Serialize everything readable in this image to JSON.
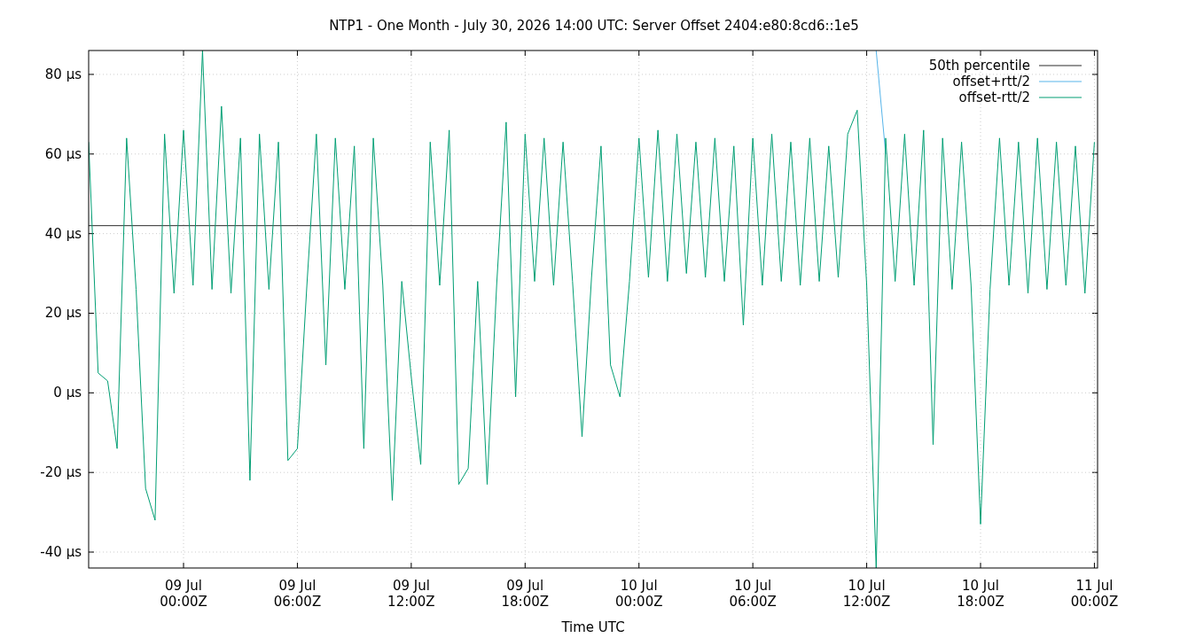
{
  "chart_data": {
    "type": "line",
    "title": "NTP1 - One Month - July 30, 2026 14:00 UTC: Server Offset 2404:e80:8cd6::1e5",
    "xlabel": "Time UTC",
    "x": [
      "2026-07-08T19:00",
      "2026-07-08T19:30",
      "2026-07-08T20:00",
      "2026-07-08T20:30",
      "2026-07-08T21:00",
      "2026-07-08T21:30",
      "2026-07-08T22:00",
      "2026-07-08T22:30",
      "2026-07-08T23:00",
      "2026-07-08T23:30",
      "2026-07-09T00:00",
      "2026-07-09T00:30",
      "2026-07-09T01:00",
      "2026-07-09T01:30",
      "2026-07-09T02:00",
      "2026-07-09T02:30",
      "2026-07-09T03:00",
      "2026-07-09T03:30",
      "2026-07-09T04:00",
      "2026-07-09T04:30",
      "2026-07-09T05:00",
      "2026-07-09T05:30",
      "2026-07-09T06:00",
      "2026-07-09T06:30",
      "2026-07-09T07:00",
      "2026-07-09T07:30",
      "2026-07-09T08:00",
      "2026-07-09T08:30",
      "2026-07-09T09:00",
      "2026-07-09T09:30",
      "2026-07-09T10:00",
      "2026-07-09T10:30",
      "2026-07-09T11:00",
      "2026-07-09T11:30",
      "2026-07-09T12:00",
      "2026-07-09T12:30",
      "2026-07-09T13:00",
      "2026-07-09T13:30",
      "2026-07-09T14:00",
      "2026-07-09T14:30",
      "2026-07-09T15:00",
      "2026-07-09T15:30",
      "2026-07-09T16:00",
      "2026-07-09T16:30",
      "2026-07-09T17:00",
      "2026-07-09T17:30",
      "2026-07-09T18:00",
      "2026-07-09T18:30",
      "2026-07-09T19:00",
      "2026-07-09T19:30",
      "2026-07-09T20:00",
      "2026-07-09T20:30",
      "2026-07-09T21:00",
      "2026-07-09T21:30",
      "2026-07-09T22:00",
      "2026-07-09T22:30",
      "2026-07-09T23:00",
      "2026-07-09T23:30",
      "2026-07-10T00:00",
      "2026-07-10T00:30",
      "2026-07-10T01:00",
      "2026-07-10T01:30",
      "2026-07-10T02:00",
      "2026-07-10T02:30",
      "2026-07-10T03:00",
      "2026-07-10T03:30",
      "2026-07-10T04:00",
      "2026-07-10T04:30",
      "2026-07-10T05:00",
      "2026-07-10T05:30",
      "2026-07-10T06:00",
      "2026-07-10T06:30",
      "2026-07-10T07:00",
      "2026-07-10T07:30",
      "2026-07-10T08:00",
      "2026-07-10T08:30",
      "2026-07-10T09:00",
      "2026-07-10T09:30",
      "2026-07-10T10:00",
      "2026-07-10T10:30",
      "2026-07-10T11:00",
      "2026-07-10T11:30",
      "2026-07-10T12:00",
      "2026-07-10T12:30",
      "2026-07-10T13:00",
      "2026-07-10T13:30",
      "2026-07-10T14:00",
      "2026-07-10T14:30",
      "2026-07-10T15:00",
      "2026-07-10T15:30",
      "2026-07-10T16:00",
      "2026-07-10T16:30",
      "2026-07-10T17:00",
      "2026-07-10T17:30",
      "2026-07-10T18:00",
      "2026-07-10T18:30",
      "2026-07-10T19:00",
      "2026-07-10T19:30",
      "2026-07-10T20:00",
      "2026-07-10T20:30",
      "2026-07-10T21:00",
      "2026-07-10T21:30",
      "2026-07-10T22:00",
      "2026-07-10T22:30",
      "2026-07-10T23:00",
      "2026-07-10T23:30",
      "2026-07-11T00:00"
    ],
    "series": [
      {
        "name": "50th percentile",
        "color": "#2b2b2b",
        "x": [
          "2026-07-08T19:00",
          "2026-07-11T00:00"
        ],
        "values": [
          42,
          42
        ]
      },
      {
        "name": "offset+rtt/2",
        "color": "#56b4e9",
        "x": [
          "2026-07-10T12:30",
          "2026-07-10T13:00"
        ],
        "values": [
          86,
          60
        ]
      },
      {
        "name": "offset-rtt/2",
        "color": "#009e73",
        "values": [
          63,
          5,
          3,
          -14,
          64,
          26,
          -24,
          -32,
          65,
          25,
          66,
          27,
          86,
          26,
          72,
          25,
          64,
          -22,
          65,
          26,
          63,
          -17,
          -14,
          27,
          65,
          7,
          64,
          26,
          62,
          -14,
          64,
          27,
          -27,
          28,
          4,
          -18,
          63,
          27,
          66,
          -23,
          -19,
          28,
          -23,
          27,
          68,
          -1,
          65,
          28,
          64,
          27,
          63,
          28,
          -11,
          29,
          62,
          7,
          -1,
          28,
          64,
          29,
          66,
          28,
          65,
          30,
          63,
          29,
          64,
          28,
          62,
          17,
          64,
          27,
          65,
          28,
          63,
          27,
          64,
          28,
          62,
          29,
          65,
          71,
          27,
          -44,
          64,
          28,
          65,
          27,
          66,
          -13,
          64,
          26,
          63,
          27,
          -33,
          26,
          64,
          27,
          63,
          25,
          64,
          26,
          63,
          27,
          62,
          25,
          63
        ]
      }
    ],
    "xlim": [
      "2026-07-08T19:00",
      "2026-07-11T00:10"
    ],
    "xticks": [
      {
        "value": "2026-07-09T00:00",
        "label": "09 Jul\n00:00Z"
      },
      {
        "value": "2026-07-09T06:00",
        "label": "09 Jul\n06:00Z"
      },
      {
        "value": "2026-07-09T12:00",
        "label": "09 Jul\n12:00Z"
      },
      {
        "value": "2026-07-09T18:00",
        "label": "09 Jul\n18:00Z"
      },
      {
        "value": "2026-07-10T00:00",
        "label": "10 Jul\n00:00Z"
      },
      {
        "value": "2026-07-10T06:00",
        "label": "10 Jul\n06:00Z"
      },
      {
        "value": "2026-07-10T12:00",
        "label": "10 Jul\n12:00Z"
      },
      {
        "value": "2026-07-10T18:00",
        "label": "10 Jul\n18:00Z"
      },
      {
        "value": "2026-07-11T00:00",
        "label": "11 Jul\n00:00Z"
      }
    ],
    "ylim": [
      -44,
      86
    ],
    "yticks": [
      {
        "value": -40,
        "label": "-40 µs"
      },
      {
        "value": -20,
        "label": "-20 µs"
      },
      {
        "value": 0,
        "label": "0 µs"
      },
      {
        "value": 20,
        "label": "20 µs"
      },
      {
        "value": 40,
        "label": "40 µs"
      },
      {
        "value": 60,
        "label": "60 µs"
      },
      {
        "value": 80,
        "label": "80 µs"
      }
    ],
    "grid": true,
    "legend": "top right",
    "marker": "none",
    "line_style": "solid"
  }
}
